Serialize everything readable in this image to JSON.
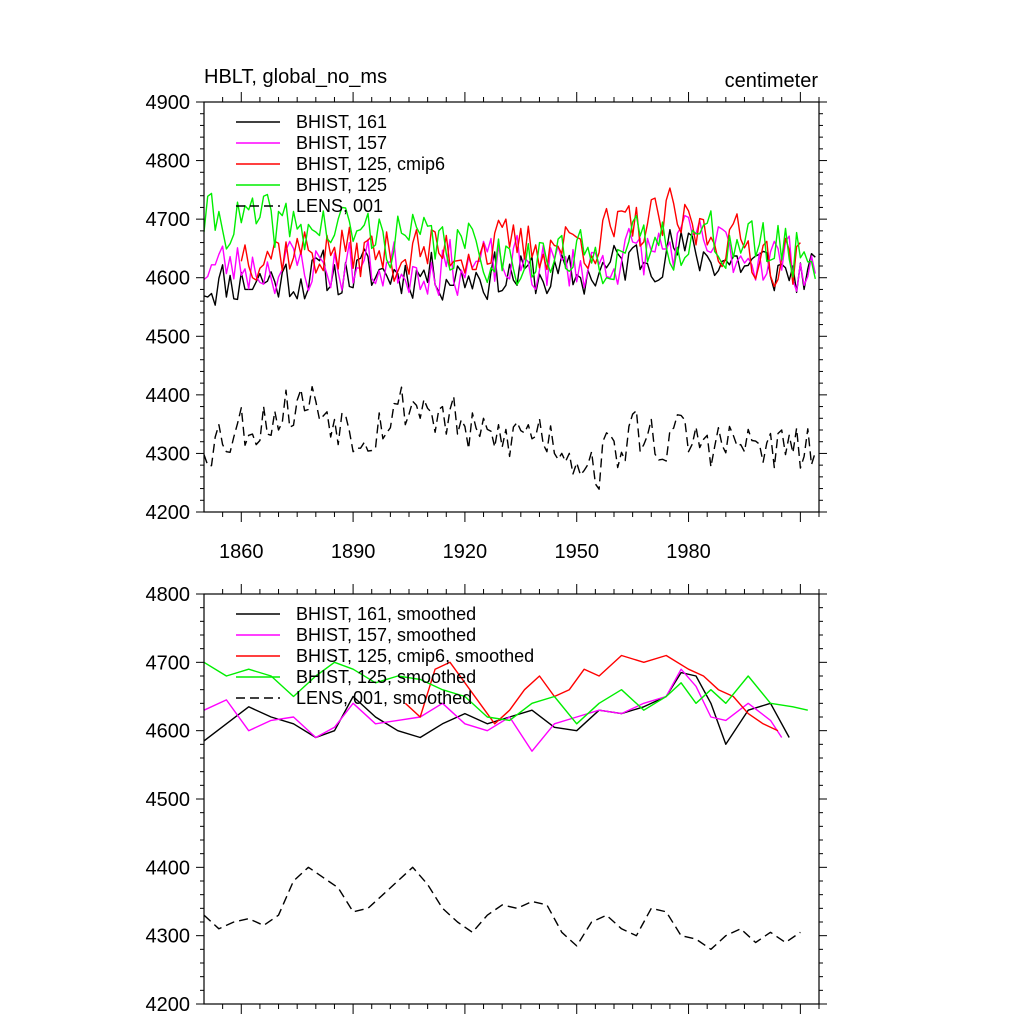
{
  "chart_data": [
    {
      "type": "line",
      "title": "HBLT, global_no_ms",
      "units": "centimeter",
      "xlabel": "",
      "ylabel": "",
      "xlim": [
        1850,
        2015
      ],
      "ylim": [
        4200,
        4900
      ],
      "x_ticks": [
        1860,
        1890,
        1920,
        1950,
        1980
      ],
      "y_ticks": [
        4200,
        4300,
        4400,
        4500,
        4600,
        4700,
        4800,
        4900
      ],
      "legend_position": "top-left",
      "grid": false,
      "series": [
        {
          "name": "BHIST, 161",
          "color": "#000000",
          "dash": "solid",
          "seed": 11,
          "base": 4615,
          "amp": 40,
          "trend": [
            [
              1850,
              4590
            ],
            [
              1900,
              4610
            ],
            [
              1950,
              4600
            ],
            [
              1975,
              4650
            ],
            [
              2014,
              4600
            ]
          ]
        },
        {
          "name": "BHIST, 157",
          "color": "#ff00ff",
          "dash": "solid",
          "seed": 23,
          "base": 4630,
          "amp": 45,
          "trend": [
            [
              1850,
              4620
            ],
            [
              1900,
              4620
            ],
            [
              1950,
              4620
            ],
            [
              1980,
              4660
            ],
            [
              2014,
              4620
            ]
          ]
        },
        {
          "name": "BHIST, 125, cmip6",
          "color": "#ff0000",
          "dash": "solid",
          "seed": 37,
          "base": 4660,
          "amp": 45,
          "start": 1860,
          "end": 2010,
          "trend": [
            [
              1860,
              4650
            ],
            [
              1900,
              4640
            ],
            [
              1950,
              4660
            ],
            [
              1975,
              4700
            ],
            [
              2010,
              4620
            ]
          ]
        },
        {
          "name": "BHIST, 125",
          "color": "#00ee00",
          "dash": "solid",
          "seed": 41,
          "base": 4660,
          "amp": 45,
          "trend": [
            [
              1850,
              4700
            ],
            [
              1890,
              4680
            ],
            [
              1930,
              4640
            ],
            [
              1950,
              4630
            ],
            [
              1980,
              4670
            ],
            [
              2014,
              4640
            ]
          ]
        },
        {
          "name": "LENS, 001",
          "color": "#000000",
          "dash": "dashed",
          "seed": 53,
          "base": 4320,
          "amp": 45,
          "trend": [
            [
              1850,
              4320
            ],
            [
              1878,
              4390
            ],
            [
              1892,
              4340
            ],
            [
              1907,
              4390
            ],
            [
              1925,
              4320
            ],
            [
              1940,
              4340
            ],
            [
              1955,
              4280
            ],
            [
              1965,
              4330
            ],
            [
              2014,
              4300
            ]
          ]
        }
      ]
    },
    {
      "type": "line",
      "title": "",
      "xlabel": "",
      "ylabel": "",
      "xlim": [
        1850,
        2015
      ],
      "ylim": [
        4200,
        4800
      ],
      "y_ticks": [
        4200,
        4300,
        4400,
        4500,
        4600,
        4700,
        4800
      ],
      "legend_position": "top-left",
      "grid": false,
      "series": [
        {
          "name": "BHIST, 161, smoothed",
          "color": "#000000",
          "dash": "solid",
          "x": [
            1850,
            1856,
            1862,
            1868,
            1874,
            1880,
            1885,
            1890,
            1896,
            1902,
            1908,
            1914,
            1920,
            1926,
            1932,
            1938,
            1944,
            1950,
            1956,
            1962,
            1968,
            1974,
            1978,
            1982,
            1986,
            1990,
            1996,
            2002,
            2007
          ],
          "y": [
            4585,
            4610,
            4635,
            4620,
            4610,
            4590,
            4600,
            4650,
            4620,
            4600,
            4590,
            4610,
            4625,
            4610,
            4620,
            4630,
            4605,
            4600,
            4630,
            4625,
            4635,
            4650,
            4685,
            4680,
            4640,
            4580,
            4630,
            4640,
            4590
          ]
        },
        {
          "name": "BHIST, 157, smoothed",
          "color": "#ff00ff",
          "dash": "solid",
          "x": [
            1850,
            1856,
            1862,
            1868,
            1874,
            1880,
            1885,
            1890,
            1896,
            1902,
            1908,
            1914,
            1920,
            1926,
            1932,
            1938,
            1944,
            1950,
            1956,
            1962,
            1968,
            1974,
            1978,
            1982,
            1986,
            1990,
            1996,
            2002,
            2005
          ],
          "y": [
            4630,
            4645,
            4600,
            4615,
            4620,
            4590,
            4605,
            4640,
            4610,
            4615,
            4620,
            4640,
            4610,
            4600,
            4620,
            4570,
            4610,
            4620,
            4630,
            4625,
            4640,
            4650,
            4690,
            4665,
            4620,
            4615,
            4640,
            4615,
            4590
          ]
        },
        {
          "name": "BHIST, 125, cmip6, smoothed",
          "color": "#ff0000",
          "dash": "solid",
          "x": [
            1904,
            1908,
            1912,
            1916,
            1920,
            1924,
            1928,
            1932,
            1936,
            1940,
            1944,
            1948,
            1952,
            1956,
            1962,
            1968,
            1974,
            1980,
            1984,
            1988,
            1992,
            1996,
            2000,
            2004
          ],
          "y": [
            4640,
            4620,
            4690,
            4700,
            4670,
            4640,
            4610,
            4630,
            4660,
            4680,
            4650,
            4660,
            4690,
            4680,
            4710,
            4700,
            4710,
            4690,
            4680,
            4660,
            4650,
            4625,
            4610,
            4600
          ]
        },
        {
          "name": "BHIST, 125, smoothed",
          "color": "#00ee00",
          "dash": "solid",
          "x": [
            1850,
            1856,
            1862,
            1868,
            1874,
            1880,
            1885,
            1890,
            1896,
            1902,
            1908,
            1914,
            1920,
            1926,
            1932,
            1938,
            1944,
            1950,
            1956,
            1962,
            1968,
            1974,
            1978,
            1982,
            1986,
            1990,
            1996,
            2002,
            2008,
            2012
          ],
          "y": [
            4700,
            4680,
            4690,
            4680,
            4650,
            4680,
            4700,
            4690,
            4670,
            4680,
            4675,
            4660,
            4650,
            4620,
            4615,
            4640,
            4650,
            4610,
            4640,
            4660,
            4630,
            4650,
            4670,
            4640,
            4660,
            4640,
            4680,
            4640,
            4635,
            4630
          ]
        },
        {
          "name": "LENS, 001, smoothed",
          "color": "#000000",
          "dash": "dashed",
          "x": [
            1850,
            1854,
            1858,
            1862,
            1866,
            1870,
            1874,
            1878,
            1882,
            1886,
            1890,
            1894,
            1898,
            1902,
            1906,
            1910,
            1914,
            1918,
            1922,
            1926,
            1930,
            1934,
            1938,
            1942,
            1946,
            1950,
            1954,
            1958,
            1962,
            1966,
            1970,
            1974,
            1978,
            1982,
            1986,
            1990,
            1994,
            1998,
            2002,
            2006,
            2010
          ],
          "y": [
            4330,
            4310,
            4320,
            4325,
            4315,
            4330,
            4380,
            4400,
            4385,
            4370,
            4335,
            4340,
            4360,
            4380,
            4400,
            4375,
            4340,
            4320,
            4305,
            4330,
            4345,
            4340,
            4350,
            4345,
            4305,
            4285,
            4320,
            4330,
            4310,
            4300,
            4340,
            4335,
            4300,
            4295,
            4280,
            4300,
            4310,
            4290,
            4305,
            4290,
            4305
          ]
        }
      ]
    }
  ]
}
